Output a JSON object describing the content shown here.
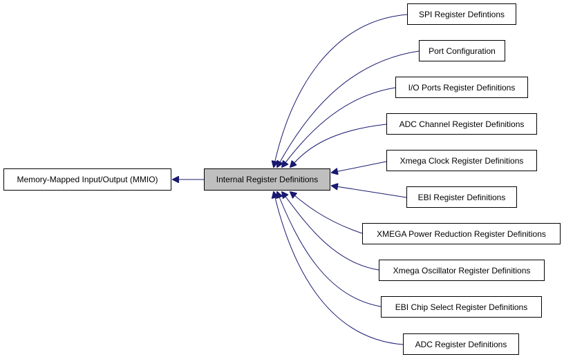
{
  "diagram": {
    "type": "doxygen-group-graph",
    "edge_color": "#191970",
    "center_fill": "#bfbfbf",
    "nodes": {
      "mmio": "Memory-Mapped Input/Output (MMIO)",
      "center": "Internal Register Definitions",
      "spi": "SPI Register Defintions",
      "port": "Port Configuration",
      "io": "I/O Ports Register Definitions",
      "adcch": "ADC Channel Register Definitions",
      "clock": "Xmega Clock Register Definitions",
      "ebi": "EBI Register Definitions",
      "power": "XMEGA Power Reduction Register Definitions",
      "osc": "Xmega Oscillator Register Definitions",
      "ebics": "EBI Chip Select Register Definitions",
      "adc": "ADC Register Definitions"
    },
    "edges": [
      {
        "from": "center",
        "to": "mmio"
      },
      {
        "from": "spi",
        "to": "center"
      },
      {
        "from": "port",
        "to": "center"
      },
      {
        "from": "io",
        "to": "center"
      },
      {
        "from": "adcch",
        "to": "center"
      },
      {
        "from": "clock",
        "to": "center"
      },
      {
        "from": "ebi",
        "to": "center"
      },
      {
        "from": "power",
        "to": "center"
      },
      {
        "from": "osc",
        "to": "center"
      },
      {
        "from": "ebics",
        "to": "center"
      },
      {
        "from": "adc",
        "to": "center"
      }
    ]
  }
}
